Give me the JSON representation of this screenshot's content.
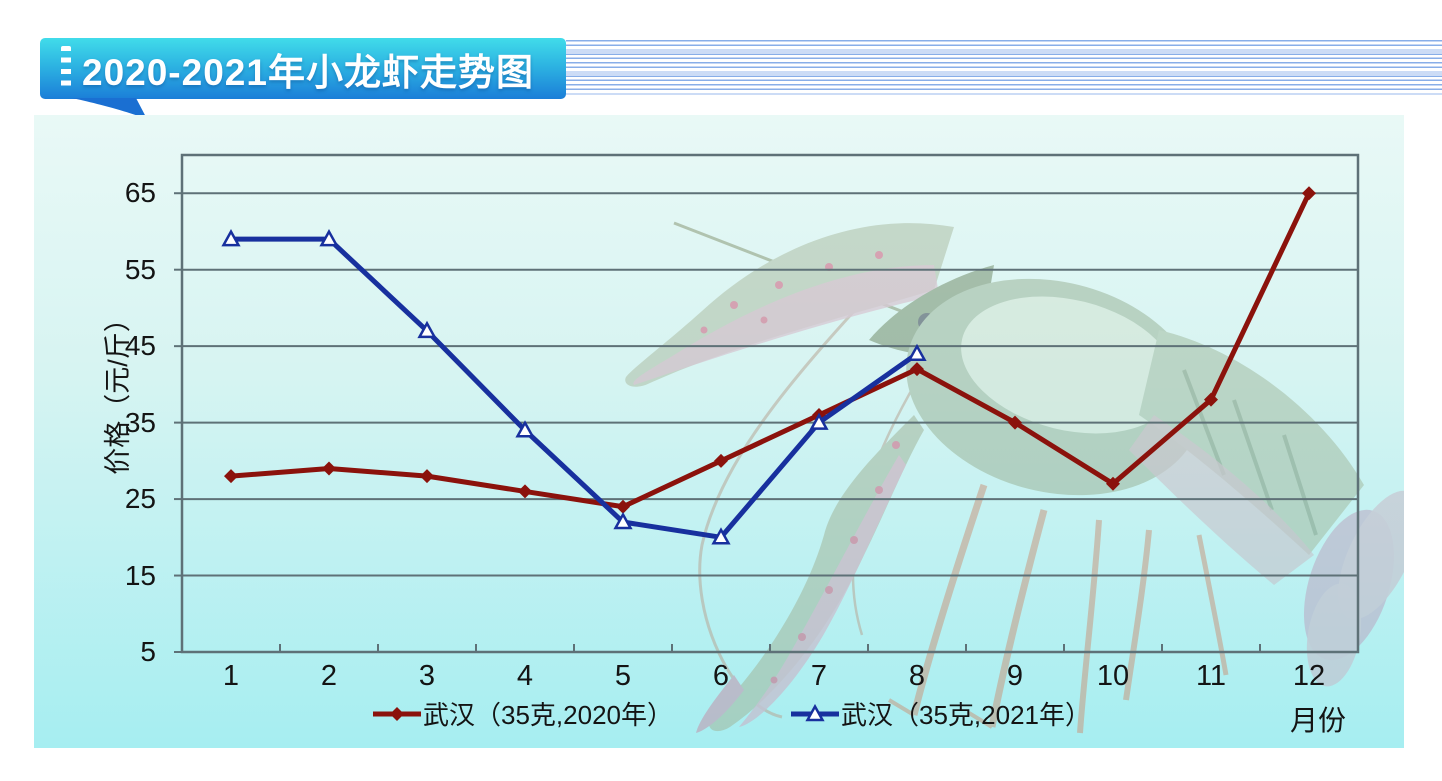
{
  "banner": {
    "title": "2020-2021年小龙虾走势图"
  },
  "colors": {
    "banner_top": "#41dcea",
    "banner_bottom": "#1b7ed8",
    "banner_tail": "#1a6fd2",
    "stripe_line": "#88aee8",
    "stripe_band": "#ccdcf6",
    "panel_top": "#e9f9f6",
    "panel_bottom": "#a6eef1",
    "grid": "#5e7177",
    "series_2020": "#8b120c",
    "series_2021": "#18309e"
  },
  "chart_data": {
    "type": "line",
    "title": "2020-2021年小龙虾走势图",
    "xlabel": "月份",
    "ylabel": "价格（元/斤）",
    "categories": [
      "1",
      "2",
      "3",
      "4",
      "5",
      "6",
      "7",
      "8",
      "9",
      "10",
      "11",
      "12"
    ],
    "series": [
      {
        "name": "武汉（35克,2020年）",
        "color": "#8b120c",
        "marker": "diamond",
        "values": [
          28,
          29,
          28,
          26,
          24,
          30,
          36,
          42,
          35,
          27,
          38,
          65
        ]
      },
      {
        "name": "武汉（35克,2021年）",
        "color": "#18309e",
        "marker": "triangle-open",
        "values": [
          59,
          59,
          47,
          34,
          22,
          20,
          35,
          44,
          null,
          null,
          null,
          null
        ]
      }
    ],
    "ylim": [
      5,
      70
    ],
    "yticks": [
      5,
      15,
      25,
      35,
      45,
      55,
      65
    ],
    "grid": true,
    "legend_position": "bottom"
  }
}
